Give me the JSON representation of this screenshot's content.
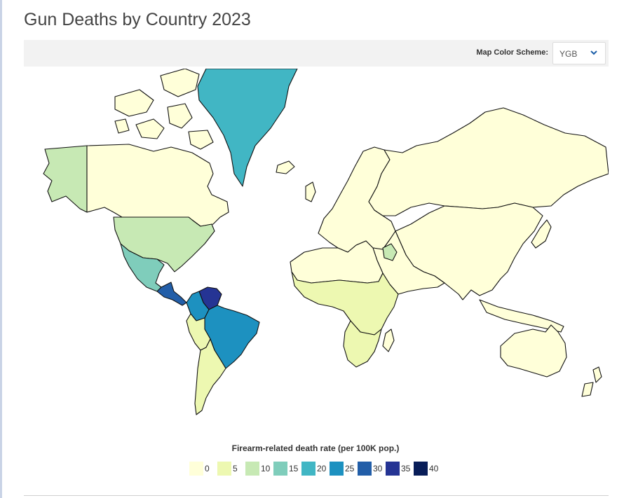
{
  "page": {
    "title": "Gun Deaths by Country 2023"
  },
  "toolbar": {
    "scheme_label": "Map Color Scheme:",
    "scheme_value": "YGB",
    "scheme_icon": "chevron-down-icon"
  },
  "colors": {
    "c0": "#ffffd9",
    "c5": "#edf8b1",
    "c10": "#c7e9b4",
    "c15": "#7fcdbb",
    "c20": "#41b6c4",
    "c25": "#1d91c0",
    "c30": "#225ea8",
    "c35": "#253494",
    "c40": "#081d58",
    "border": "#111111",
    "no_data": "#ffffff"
  },
  "legend": {
    "title": "Firearm-related death rate (per 100K pop.)",
    "items": [
      {
        "label": "0",
        "color": "#ffffd9"
      },
      {
        "label": "5",
        "color": "#edf8b1"
      },
      {
        "label": "10",
        "color": "#c7e9b4"
      },
      {
        "label": "15",
        "color": "#7fcdbb"
      },
      {
        "label": "20",
        "color": "#41b6c4"
      },
      {
        "label": "25",
        "color": "#1d91c0"
      },
      {
        "label": "30",
        "color": "#225ea8"
      },
      {
        "label": "35",
        "color": "#253494"
      },
      {
        "label": "40",
        "color": "#081d58"
      }
    ]
  },
  "map": {
    "regions": [
      {
        "name": "alaska",
        "bin": "c10"
      },
      {
        "name": "canada",
        "bin": "c0"
      },
      {
        "name": "canadian-arctic",
        "bin": "c0"
      },
      {
        "name": "greenland",
        "bin": "c20"
      },
      {
        "name": "usa",
        "bin": "c10"
      },
      {
        "name": "mexico",
        "bin": "c15"
      },
      {
        "name": "central-america",
        "bin": "c30"
      },
      {
        "name": "colombia",
        "bin": "c25"
      },
      {
        "name": "venezuela",
        "bin": "c35"
      },
      {
        "name": "brazil",
        "bin": "c25"
      },
      {
        "name": "andes",
        "bin": "c5"
      },
      {
        "name": "southern-cone",
        "bin": "c5"
      },
      {
        "name": "europe",
        "bin": "c0"
      },
      {
        "name": "russia",
        "bin": "c0"
      },
      {
        "name": "asia",
        "bin": "c0"
      },
      {
        "name": "middle-east",
        "bin": "c0"
      },
      {
        "name": "iraq",
        "bin": "c10"
      },
      {
        "name": "north-africa",
        "bin": "c0"
      },
      {
        "name": "sub-saharan-africa",
        "bin": "c5"
      },
      {
        "name": "southern-africa",
        "bin": "c5"
      },
      {
        "name": "australia",
        "bin": "c0"
      },
      {
        "name": "indonesia",
        "bin": "c0"
      },
      {
        "name": "japan",
        "bin": "c0"
      },
      {
        "name": "new-zealand",
        "bin": "c0"
      },
      {
        "name": "iceland",
        "bin": "c0"
      },
      {
        "name": "uk",
        "bin": "c0"
      },
      {
        "name": "madagascar",
        "bin": "c0"
      }
    ]
  }
}
